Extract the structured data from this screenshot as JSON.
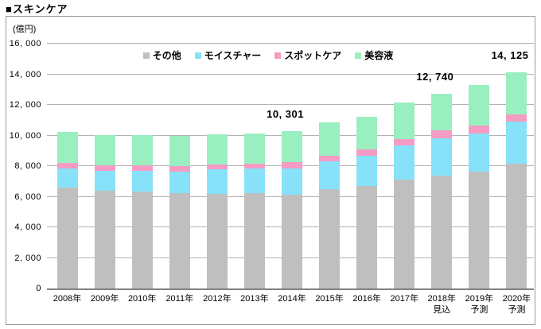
{
  "page": {
    "title": "■スキンケア",
    "unit_label": "(億円)"
  },
  "chart_data": {
    "type": "bar",
    "stacked": true,
    "title": "■スキンケア",
    "unit": "億円",
    "grid": true,
    "legend_position": "top-center",
    "ylim": [
      0,
      16000
    ],
    "categories": [
      "2008年",
      "2009年",
      "2010年",
      "2011年",
      "2012年",
      "2013年",
      "2014年",
      "2015年",
      "2016年",
      "2017年",
      "2018年",
      "2019年",
      "2020年"
    ],
    "category_sublabels": [
      "",
      "",
      "",
      "",
      "",
      "",
      "",
      "",
      "",
      "",
      "見込",
      "予測",
      "予測"
    ],
    "series": [
      {
        "name": "その他",
        "color": "#bfbfbf",
        "values": [
          6600,
          6400,
          6350,
          6250,
          6200,
          6220,
          6130,
          6480,
          6680,
          7130,
          7375,
          7650,
          8170
        ]
      },
      {
        "name": "モイスチャー",
        "color": "#87e2f9",
        "values": [
          1270,
          1310,
          1360,
          1400,
          1580,
          1600,
          1730,
          1850,
          1990,
          2200,
          2435,
          2490,
          2745
        ]
      },
      {
        "name": "スポットケア",
        "color": "#f69bc3",
        "values": [
          350,
          330,
          320,
          330,
          330,
          330,
          400,
          350,
          400,
          440,
          550,
          520,
          480
        ]
      },
      {
        "name": "美容液",
        "color": "#9aefc1",
        "values": [
          2000,
          2010,
          2020,
          1990,
          1960,
          1980,
          2041,
          2200,
          2160,
          2400,
          2380,
          2640,
          2730
        ]
      }
    ],
    "totals": [
      10220,
      10050,
      10050,
      9970,
      10070,
      10130,
      10301,
      10880,
      11230,
      12170,
      12740,
      13300,
      14125
    ],
    "annotations": [
      {
        "category_index": 6,
        "label": "10, 301",
        "value": 10301
      },
      {
        "category_index": 10,
        "label": "12, 740",
        "value": 12740
      },
      {
        "category_index": 12,
        "label": "14, 125",
        "value": 14125
      }
    ],
    "yticks": [
      {
        "v": 0,
        "label": "0"
      },
      {
        "v": 2000,
        "label": "2, 000"
      },
      {
        "v": 4000,
        "label": "4, 000"
      },
      {
        "v": 6000,
        "label": "6, 000"
      },
      {
        "v": 8000,
        "label": "8, 000"
      },
      {
        "v": 10000,
        "label": "10, 000"
      },
      {
        "v": 12000,
        "label": "12, 000"
      },
      {
        "v": 14000,
        "label": "14, 000"
      },
      {
        "v": 16000,
        "label": "16, 000"
      }
    ]
  }
}
